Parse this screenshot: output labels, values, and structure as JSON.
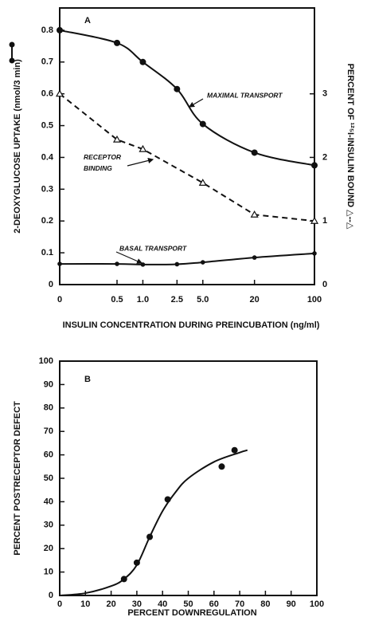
{
  "chart_data": [
    {
      "type": "line",
      "panel_label": "A",
      "ylabel": "2-DEOXYGLUCOSE UPTAKE (nmol/3 min)",
      "y2label": "PERCENT OF ¹²⁵I-INSULIN BOUND △--△",
      "xlabel": "INSULIN CONCENTRATION DURING PREINCUBATION (ng/ml)",
      "xscale": "log",
      "xlim": [
        0,
        100
      ],
      "xticks": [
        0,
        0.5,
        {
          "value": 1,
          "label": "1.0"
        },
        2.5,
        {
          "value": 5,
          "label": "5.0"
        },
        20,
        100
      ],
      "ylim": [
        0,
        0.87
      ],
      "yticks": [
        0,
        0.1,
        0.2,
        0.3,
        0.4,
        0.5,
        0.6,
        0.7,
        0.8
      ],
      "y2lim": [
        0,
        4.35
      ],
      "y2ticks": [
        0,
        1,
        2,
        3
      ],
      "series": [
        {
          "name": "MAXIMAL TRANSPORT",
          "color": "#111111",
          "line": "smooth",
          "marker": "circle",
          "x": [
            0,
            0.5,
            1,
            2.5,
            5,
            20,
            100
          ],
          "values": [
            0.8,
            0.76,
            0.7,
            0.615,
            0.505,
            0.415,
            0.375
          ]
        },
        {
          "name": "RECEPTOR BINDING",
          "color": "#111111",
          "line": "dashed",
          "marker": "triangle",
          "axis": "y2",
          "x": [
            0,
            0.5,
            1,
            5,
            20,
            100
          ],
          "values": [
            3.0,
            2.28,
            2.13,
            1.6,
            1.1,
            1.0
          ]
        },
        {
          "name": "BASAL TRANSPORT",
          "color": "#111111",
          "line": "smooth",
          "marker": "small-circle",
          "x": [
            0,
            0.5,
            1,
            2.5,
            5,
            20,
            100
          ],
          "values": [
            0.065,
            0.065,
            0.063,
            0.064,
            0.07,
            0.085,
            0.098
          ]
        }
      ]
    },
    {
      "type": "scatter",
      "panel_label": "B",
      "ylabel": "PERCENT POSTRECEPTOR DEFECT",
      "xlabel": "PERCENT DOWNREGULATION",
      "xlim": [
        0,
        100
      ],
      "xticks": [
        0,
        10,
        20,
        30,
        40,
        50,
        60,
        70,
        80,
        90,
        100
      ],
      "ylim": [
        0,
        100
      ],
      "yticks": [
        0,
        10,
        20,
        30,
        40,
        50,
        60,
        70,
        80,
        90,
        100
      ],
      "series": [
        {
          "color": "#111111",
          "line": "none",
          "marker": "circle",
          "x": [
            25,
            30,
            35,
            42,
            63,
            68
          ],
          "values": [
            7,
            14,
            25,
            41,
            55,
            62
          ]
        },
        {
          "color": "#111111",
          "line": "smooth",
          "marker": "none",
          "x": [
            0,
            10,
            20,
            25,
            30,
            35,
            40,
            45,
            50,
            60,
            70,
            73
          ],
          "values": [
            0,
            1,
            4,
            7,
            13,
            25,
            36,
            44,
            50,
            57,
            61,
            62
          ]
        }
      ]
    }
  ]
}
